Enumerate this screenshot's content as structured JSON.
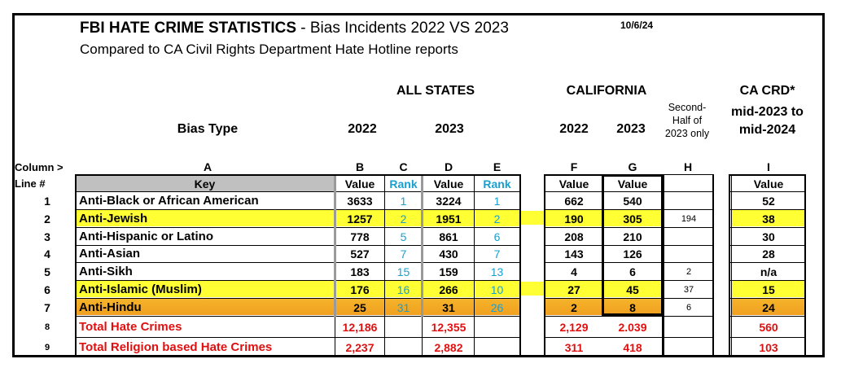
{
  "header": {
    "title_bold": "FBI HATE CRIME STATISTICS",
    "title_rest": " - Bias Incidents 2022 VS 2023",
    "date": "10/6/24",
    "subtitle": "Compared to CA Civil Rights Department Hate Hotline reports"
  },
  "groups": {
    "all_states": "ALL STATES",
    "california": "CALIFORNIA",
    "second_half": "Second-Half of 2023 only",
    "ca_crd_line1": "CA CRD*",
    "ca_crd_line2": "mid-2023 to mid-2024"
  },
  "columns": {
    "bias_type": "Bias Type",
    "y2022": "2022",
    "y2023": "2023",
    "ca2022": "2022",
    "ca2023": "2023",
    "column_label": "Column >",
    "line_label": "Line #",
    "letters": [
      "A",
      "B",
      "C",
      "D",
      "E",
      "F",
      "G",
      "H",
      "I"
    ],
    "key": "Key",
    "value": "Value",
    "rank": "Rank"
  },
  "rows": [
    {
      "line": "1",
      "key": "Anti-Black or African American",
      "b": "3633",
      "c": "1",
      "d": "3224",
      "e": "1",
      "f": "662",
      "g": "540",
      "h": "",
      "i": "52"
    },
    {
      "line": "2",
      "key": "Anti-Jewish",
      "b": "1257",
      "c": "2",
      "d": "1951",
      "e": "2",
      "f": "190",
      "g": "305",
      "h": "194",
      "i": "38"
    },
    {
      "line": "3",
      "key": "Anti-Hispanic or Latino",
      "b": "778",
      "c": "5",
      "d": "861",
      "e": "6",
      "f": "208",
      "g": "210",
      "h": "",
      "i": "30"
    },
    {
      "line": "4",
      "key": "Anti-Asian",
      "b": "527",
      "c": "7",
      "d": "430",
      "e": "7",
      "f": "143",
      "g": "126",
      "h": "",
      "i": "28"
    },
    {
      "line": "5",
      "key": "Anti-Sikh",
      "b": "183",
      "c": "15",
      "d": "159",
      "e": "13",
      "f": "4",
      "g": "6",
      "h": "2",
      "i": "n/a"
    },
    {
      "line": "6",
      "key": "Anti-Islamic (Muslim)",
      "b": "176",
      "c": "16",
      "d": "266",
      "e": "10",
      "f": "27",
      "g": "45",
      "h": "37",
      "i": "15"
    },
    {
      "line": "7",
      "key": "Anti-Hindu",
      "b": "25",
      "c": "31",
      "d": "31",
      "e": "26",
      "f": "2",
      "g": "8",
      "h": "6",
      "i": "24"
    },
    {
      "line": "8",
      "key": "Total Hate Crimes",
      "b": "12,186",
      "c": "",
      "d": "12,355",
      "e": "",
      "f": "2,129",
      "g": "2.039",
      "h": "",
      "i": "560"
    },
    {
      "line": "9",
      "key": "Total Religion based Hate Crimes",
      "b": "2,237",
      "c": "",
      "d": "2,882",
      "e": "",
      "f": "311",
      "g": "418",
      "h": "",
      "i": "103"
    }
  ],
  "colors": {
    "highlight_yellow": "#ffff33",
    "highlight_orange": "#f0a020",
    "rank_blue": "#1aa0d0",
    "total_red": "#e01010"
  }
}
